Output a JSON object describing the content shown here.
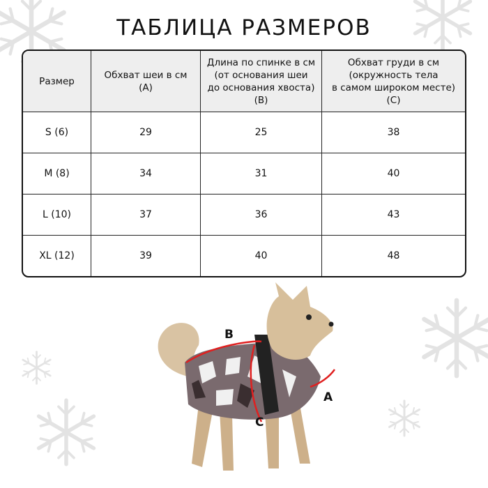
{
  "title": "ТАБЛИЦА РАЗМЕРОВ",
  "table": {
    "headers": [
      [
        "Размер"
      ],
      [
        "Обхват шеи в см",
        "(A)"
      ],
      [
        "Длина по спинке в см",
        "(от основания шеи",
        "до основания хвоста)",
        "(B)"
      ],
      [
        "Обхват груди в см",
        "(окружность тела",
        "в самом широком месте)",
        "(C)"
      ]
    ],
    "rows": [
      [
        "S (6)",
        "29",
        "25",
        "38"
      ],
      [
        "M (8)",
        "34",
        "31",
        "40"
      ],
      [
        "L (10)",
        "37",
        "36",
        "43"
      ],
      [
        "XL (12)",
        "39",
        "40",
        "48"
      ]
    ]
  },
  "diagram": {
    "labels": {
      "a": "A",
      "b": "B",
      "c": "C"
    },
    "arrow_color": "#e02020"
  },
  "colors": {
    "header_bg": "#eeeeee",
    "border": "#111111",
    "snowflake": "#e3e3e3"
  }
}
